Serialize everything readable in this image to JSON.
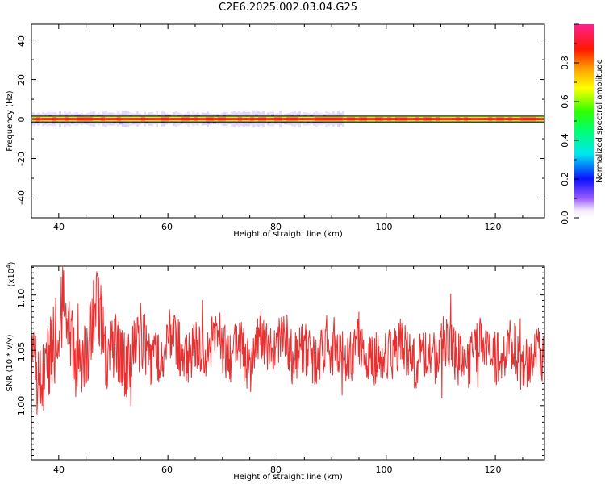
{
  "figure": {
    "title": "C2E6.2025.002.03.04.G25"
  },
  "chart_data": [
    {
      "type": "heatmap",
      "title": "",
      "xlabel": "Height of straight line (km)",
      "ylabel": "Frequency (Hz)",
      "xlim": [
        35,
        129
      ],
      "ylim": [
        -50,
        48
      ],
      "xticks": [
        "40",
        "60",
        "80",
        "100",
        "120"
      ],
      "yticks": [
        "40",
        "20",
        "0",
        "-20",
        "-40"
      ],
      "colorbar": {
        "label": "Normalized spectral amplitude",
        "range": [
          0,
          1
        ],
        "ticks": [
          "0.0",
          "0.2",
          "0.4",
          "0.6",
          "0.8"
        ]
      },
      "band": {
        "center_frequency_hz": 0,
        "core_halfwidth_hz": 1,
        "spread_halfwidth_hz": 4,
        "spread_ends_near_km": 92
      }
    },
    {
      "type": "line",
      "title": "",
      "xlabel": "Height of straight line (km)",
      "ylabel": "SNR (10 * v/v)",
      "multiplier": "(x10",
      "multiplier_exp": "4",
      "xlim": [
        35,
        129
      ],
      "ylim": [
        0.951,
        1.126
      ],
      "xticks": [
        "40",
        "60",
        "80",
        "100",
        "120"
      ],
      "yticks": [
        "1.10",
        "1.05",
        "1.00"
      ],
      "series": [
        {
          "color": "#e83030",
          "x": [
            35,
            37,
            39,
            41,
            43,
            45,
            47,
            49,
            51,
            53,
            55,
            57,
            59,
            61,
            63,
            65,
            67,
            69,
            71,
            73,
            75,
            77,
            79,
            81,
            83,
            85,
            87,
            89,
            91,
            93,
            95,
            97,
            99,
            101,
            103,
            105,
            107,
            109,
            111,
            113,
            115,
            117,
            119,
            121,
            123,
            125,
            127,
            129
          ],
          "y": [
            1.035,
            1.02,
            1.058,
            1.094,
            1.042,
            1.048,
            1.1,
            1.038,
            1.055,
            1.03,
            1.062,
            1.041,
            1.048,
            1.07,
            1.036,
            1.052,
            1.045,
            1.069,
            1.04,
            1.057,
            1.034,
            1.064,
            1.044,
            1.073,
            1.04,
            1.052,
            1.037,
            1.059,
            1.046,
            1.04,
            1.061,
            1.039,
            1.05,
            1.043,
            1.058,
            1.036,
            1.048,
            1.041,
            1.062,
            1.044,
            1.038,
            1.055,
            1.049,
            1.04,
            1.057,
            1.035,
            1.046,
            1.044
          ],
          "y_min": 0.955,
          "y_max": 1.125
        }
      ]
    }
  ]
}
